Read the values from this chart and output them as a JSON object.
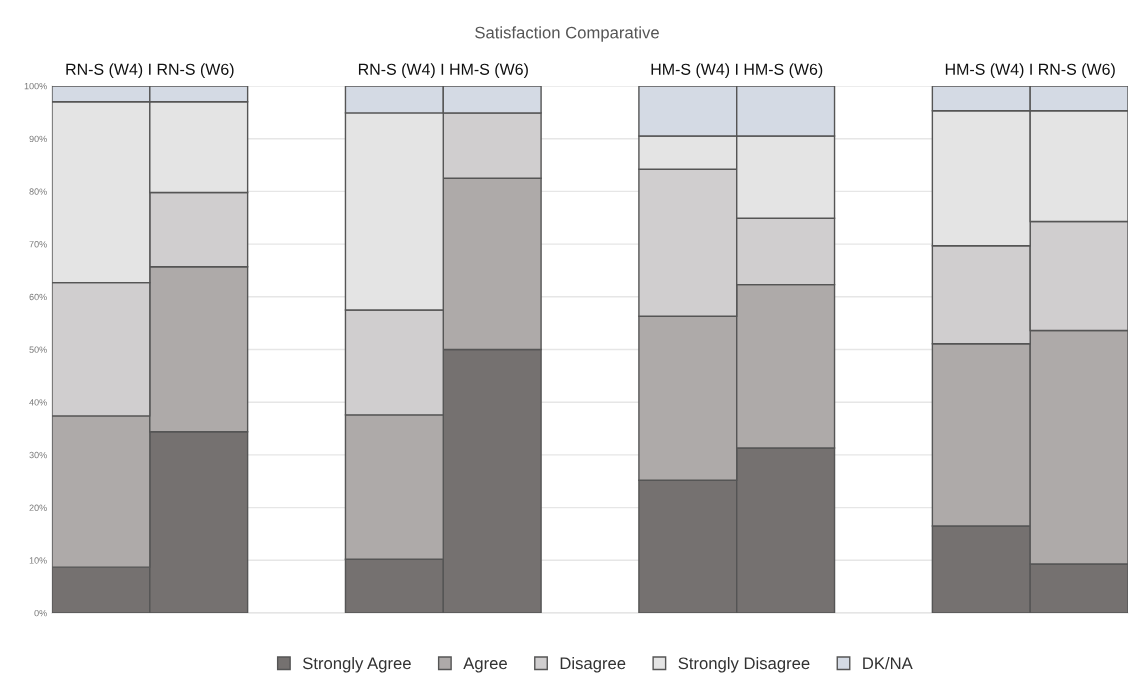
{
  "chart_data": {
    "type": "bar",
    "title": "Satisfaction Comparative",
    "stacked": true,
    "categories": [
      null,
      null,
      null,
      null,
      null,
      null,
      null,
      null,
      null,
      null,
      null
    ],
    "series": [
      {
        "name": "Strongly Agree",
        "color": "#757170",
        "values": [
          8.7,
          34.4,
          null,
          10.2,
          50.0,
          null,
          25.2,
          31.3,
          null,
          16.5,
          9.3
        ]
      },
      {
        "name": "Agree",
        "color": "#aeaaa9",
        "values": [
          28.7,
          31.3,
          null,
          27.4,
          32.5,
          null,
          31.1,
          31.0,
          null,
          34.6,
          44.3
        ]
      },
      {
        "name": "Disagree",
        "color": "#d0cecf",
        "values": [
          25.3,
          14.1,
          null,
          19.9,
          12.4,
          null,
          27.9,
          12.6,
          null,
          18.6,
          20.7
        ]
      },
      {
        "name": "Strongly Disagree",
        "color": "#e4e4e4",
        "values": [
          34.3,
          17.2,
          null,
          37.4,
          0,
          null,
          6.3,
          15.6,
          null,
          25.6,
          21.0
        ]
      },
      {
        "name": "DK/NA",
        "color": "#d4dae4",
        "values": [
          3.0,
          3.0,
          null,
          5.1,
          5.1,
          null,
          9.5,
          9.5,
          null,
          4.7,
          4.7
        ]
      }
    ],
    "annotations": [
      "RN-S (W4) I RN-S (W6)",
      "RN-S (W4) I HM-S (W6)",
      "HM-S (W4) I HM-S (W6)",
      "HM-S (W4) I RN-S (W6)"
    ],
    "ylim": [
      0,
      100
    ],
    "yticks": [
      {
        "value": 0,
        "label": "0%"
      },
      {
        "value": 10,
        "label": "10%"
      },
      {
        "value": 20,
        "label": "20%"
      },
      {
        "value": 30,
        "label": "30%"
      },
      {
        "value": 40,
        "label": "40%"
      },
      {
        "value": 50,
        "label": "50%"
      },
      {
        "value": 60,
        "label": "60%"
      },
      {
        "value": 70,
        "label": "70%"
      },
      {
        "value": 80,
        "label": "80%"
      },
      {
        "value": 90,
        "label": "90%"
      },
      {
        "value": 100,
        "label": "100%"
      }
    ],
    "grid": "y",
    "legend": "bottom"
  }
}
